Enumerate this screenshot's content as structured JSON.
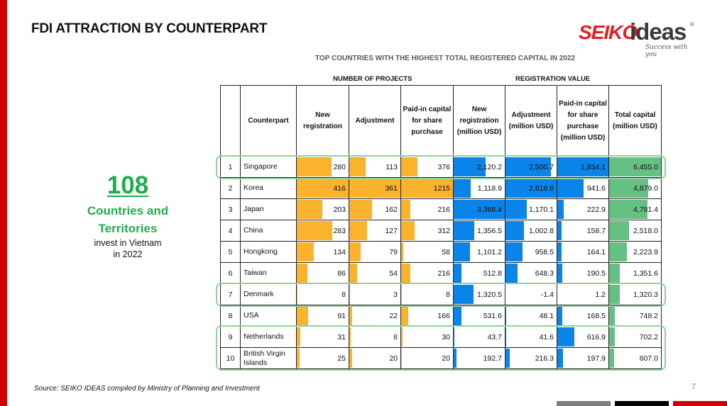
{
  "page": {
    "title": "FDI ATTRACTION BY COUNTERPART",
    "page_number": "7",
    "source": "Source: SEIKO IDEAS compiled by Ministry of Planning and Investment"
  },
  "logo": {
    "brand_part1": "SEIKO",
    "brand_part2": "ideas",
    "registered": "®",
    "tagline": "Success with you"
  },
  "summary": {
    "number": "108",
    "label_line1": "Countries and",
    "label_line2": "Territories",
    "sub_line1": "invest in Vietnam",
    "sub_line2": "in 2022"
  },
  "colors": {
    "accent_red": "#d0000a",
    "summary_green": "#1fae4a",
    "projects_bar": "#fbb22c",
    "value_bar": "#0a84e8",
    "total_bar": "#66c083",
    "highlight_outline": "#8fd19e"
  },
  "table": {
    "title": "TOP COUNTRIES WITH THE HIGHEST TOTAL REGISTERED CAPITAL IN 2022",
    "group_projects": "NUMBER OF PROJECTS",
    "group_value": "REGISTRATION VALUE",
    "headers": {
      "idx": "",
      "counterpart": "Counterpart",
      "new_reg": "New registration",
      "adjustment": "Adjustment",
      "paid_in": "Paid-in capital for share purchase",
      "new_reg_value": "New registration (million USD)",
      "adjustment_value": "Adjustment (million USD)",
      "paid_in_value": "Paid-in capital for share purchase (million USD)",
      "total_capital": "Total capital (million USD)"
    },
    "highlighted_ranks": [
      1,
      7,
      9,
      10
    ],
    "rows": [
      {
        "rank": "1",
        "name": "Singapore",
        "new_reg": 280,
        "adjustment": 113,
        "paid_in": 376,
        "new_reg_value": 2120.2,
        "adjustment_value": 2500.7,
        "paid_in_value": 1834.1,
        "total_capital": 6455.0
      },
      {
        "rank": "2",
        "name": "Korea",
        "new_reg": 416,
        "adjustment": 361,
        "paid_in": 1215,
        "new_reg_value": 1118.9,
        "adjustment_value": 2818.6,
        "paid_in_value": 941.6,
        "total_capital": 4879.0
      },
      {
        "rank": "3",
        "name": "Japan",
        "new_reg": 203,
        "adjustment": 162,
        "paid_in": 216,
        "new_reg_value": 3388.4,
        "adjustment_value": 1170.1,
        "paid_in_value": 222.9,
        "total_capital": 4781.4
      },
      {
        "rank": "4",
        "name": "China",
        "new_reg": 283,
        "adjustment": 127,
        "paid_in": 312,
        "new_reg_value": 1356.5,
        "adjustment_value": 1002.8,
        "paid_in_value": 158.7,
        "total_capital": 2518.0
      },
      {
        "rank": "5",
        "name": "Hongkong",
        "new_reg": 134,
        "adjustment": 79,
        "paid_in": 58,
        "new_reg_value": 1101.2,
        "adjustment_value": 958.5,
        "paid_in_value": 164.1,
        "total_capital": 2223.9
      },
      {
        "rank": "6",
        "name": "Taiwan",
        "new_reg": 86,
        "adjustment": 54,
        "paid_in": 216,
        "new_reg_value": 512.8,
        "adjustment_value": 648.3,
        "paid_in_value": 190.5,
        "total_capital": 1351.6
      },
      {
        "rank": "7",
        "name": "Denmark",
        "new_reg": 8,
        "adjustment": 3,
        "paid_in": 8,
        "new_reg_value": 1320.5,
        "adjustment_value": -1.4,
        "paid_in_value": 1.2,
        "total_capital": 1320.3
      },
      {
        "rank": "8",
        "name": "USA",
        "new_reg": 91,
        "adjustment": 22,
        "paid_in": 166,
        "new_reg_value": 531.6,
        "adjustment_value": 48.1,
        "paid_in_value": 168.5,
        "total_capital": 748.2
      },
      {
        "rank": "9",
        "name": "Netherlands",
        "new_reg": 31,
        "adjustment": 8,
        "paid_in": 30,
        "new_reg_value": 43.7,
        "adjustment_value": 41.6,
        "paid_in_value": 616.9,
        "total_capital": 702.2
      },
      {
        "rank": "10",
        "name": "British Virgin Islands",
        "new_reg": 25,
        "adjustment": 20,
        "paid_in": 20,
        "new_reg_value": 192.7,
        "adjustment_value": 216.3,
        "paid_in_value": 197.9,
        "total_capital": 607.0
      }
    ]
  }
}
